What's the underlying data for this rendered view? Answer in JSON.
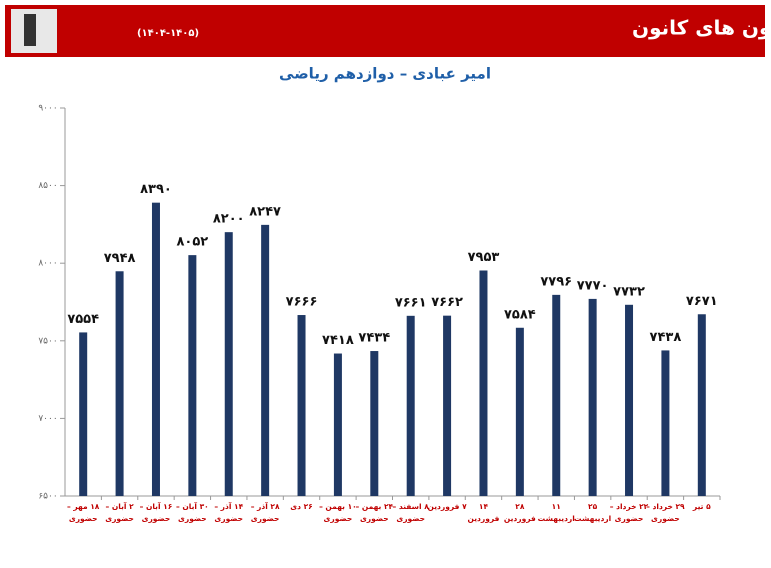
{
  "chart_data": {
    "type": "bar",
    "title": "نمودار تراز کل سال دوازدهم در آزمون های کانون",
    "title_note": "(۱۴۰۴-۱۴۰۵)",
    "subtitle": "امیر عبادی – دوازدهم ریاضی",
    "categories": [
      "۱۸ مهر –\nحضوری",
      "۲ آبان –\nحضوری",
      "۱۶ آبان –\nحضوری",
      "۳۰ آبان –\nحضوری",
      "۱۴ آذر –\nحضوری",
      "۲۸ آذر –\nحضوری",
      "۲۶ دی",
      "۱۰ بهمن –\nحضوری",
      "۲۴ بهمن –\nحضوری",
      "۸ اسفند –\nحضوری",
      "۷ فروردین",
      "۱۴ فروردین",
      "۲۸ فروردین",
      "۱۱ اردیبهشت",
      "۲۵\nاردیبهشت",
      "۲۲ خرداد –\nحضوری",
      "۲۹ خرداد –\nحضوری",
      "۵ تیر"
    ],
    "values": [
      7554,
      7948,
      8390,
      8052,
      8200,
      8247,
      7666,
      7418,
      7434,
      7661,
      7662,
      7953,
      7584,
      7796,
      7770,
      7732,
      7438,
      7671
    ],
    "value_labels": [
      "۷۵۵۴",
      "۷۹۴۸",
      "۸۳۹۰",
      "۸۰۵۲",
      "۸۲۰۰",
      "۸۲۴۷",
      "۷۶۶۶",
      "۷۴۱۸",
      "۷۴۳۴",
      "۷۶۶۱",
      "۷۶۶۲",
      "۷۹۵۳",
      "۷۵۸۴",
      "۷۷۹۶",
      "۷۷۷۰",
      "۷۷۳۲",
      "۷۴۳۸",
      "۷۶۷۱"
    ],
    "color": "#1f3864",
    "ylim": [
      6500,
      9000
    ],
    "yticks": [
      {
        "value": 6500,
        "label": "۶۵۰۰"
      },
      {
        "value": 7000,
        "label": "۷۰۰۰"
      },
      {
        "value": 7500,
        "label": "۷۵۰۰"
      },
      {
        "value": 8000,
        "label": "۸۰۰۰"
      },
      {
        "value": 8500,
        "label": "۸۵۰۰"
      },
      {
        "value": 9000,
        "label": "۹۰۰۰"
      }
    ],
    "grid": false
  }
}
